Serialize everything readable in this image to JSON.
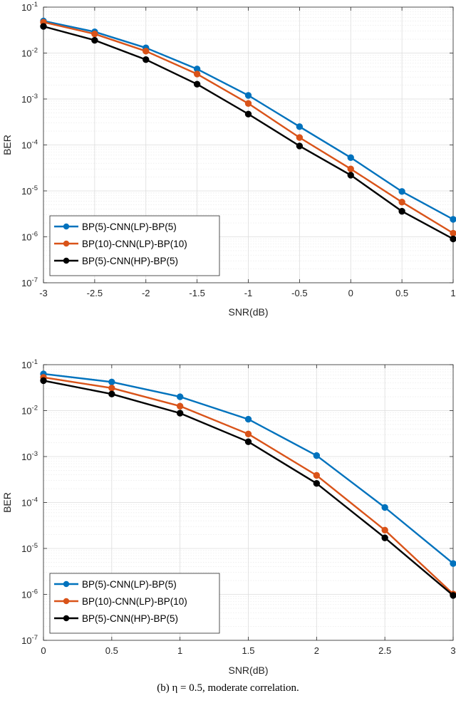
{
  "chart_data": [
    {
      "type": "line",
      "xlabel": "SNR(dB)",
      "ylabel": "BER",
      "yscale": "log",
      "xlim": [
        -3,
        1
      ],
      "ylim": [
        1e-07,
        0.1
      ],
      "xticks": [
        "-3",
        "-2.5",
        "-2",
        "-1.5",
        "-1",
        "-0.5",
        "0",
        "0.5",
        "1"
      ],
      "grid": true,
      "legend_position": "bottom-left",
      "x": [
        -3,
        -2.5,
        -2,
        -1.5,
        -1,
        -0.5,
        0,
        0.5,
        1
      ],
      "series": [
        {
          "name": "BP(5)-CNN(LP)-BP(5)",
          "color": "#0072BD",
          "values": [
            0.05,
            0.029,
            0.013,
            0.0045,
            0.0012,
            0.00025,
            5.3e-05,
            9.7e-06,
            2.4e-06
          ]
        },
        {
          "name": "BP(10)-CNN(LP)-BP(10)",
          "color": "#D95319",
          "values": [
            0.047,
            0.026,
            0.011,
            0.0035,
            0.0008,
            0.000145,
            3e-05,
            5.7e-06,
            1.2e-06
          ]
        },
        {
          "name": "BP(5)-CNN(HP)-BP(5)",
          "color": "#000000",
          "values": [
            0.038,
            0.019,
            0.0072,
            0.0021,
            0.00047,
            9.5e-05,
            2.2e-05,
            3.6e-06,
            9e-07
          ]
        }
      ]
    },
    {
      "type": "line",
      "xlabel": "SNR(dB)",
      "ylabel": "BER",
      "yscale": "log",
      "xlim": [
        0,
        3
      ],
      "ylim": [
        1e-07,
        0.1
      ],
      "xticks": [
        "0",
        "0.5",
        "1",
        "1.5",
        "2",
        "2.5",
        "3"
      ],
      "grid": true,
      "legend_position": "bottom-left",
      "x": [
        0,
        0.5,
        1,
        1.5,
        2,
        2.5,
        3
      ],
      "series": [
        {
          "name": "BP(5)-CNN(LP)-BP(5)",
          "color": "#0072BD",
          "values": [
            0.063,
            0.042,
            0.02,
            0.0065,
            0.00105,
            7.8e-05,
            4.7e-06
          ]
        },
        {
          "name": "BP(10)-CNN(LP)-BP(10)",
          "color": "#D95319",
          "values": [
            0.053,
            0.031,
            0.0125,
            0.0031,
            0.00039,
            2.5e-05,
            1.02e-06
          ]
        },
        {
          "name": "BP(5)-CNN(HP)-BP(5)",
          "color": "#000000",
          "values": [
            0.045,
            0.023,
            0.0088,
            0.0021,
            0.00026,
            1.7e-05,
            9.5e-07
          ]
        }
      ]
    }
  ],
  "caption": "(b) η = 0.5, moderate correlation."
}
